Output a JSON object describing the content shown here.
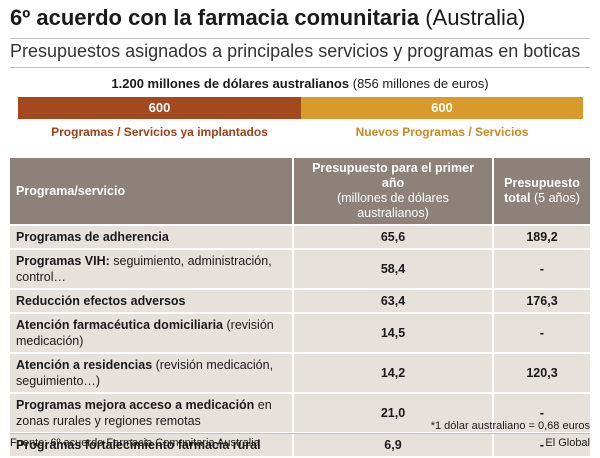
{
  "header": {
    "title_bold": "6º acuerdo con la farmacia comunitaria",
    "title_light": "(Australia)",
    "subtitle": "Presupuestos asignados a principales servicios y programas en boticas"
  },
  "total": {
    "bold": "1.200 millones de dólares australianos",
    "light": "(856 millones de euros)"
  },
  "bars": {
    "left_value": "600",
    "right_value": "600",
    "left_label": "Programas / Servicios ya implantados",
    "right_label": "Nuevos Programas / Servicios",
    "left_color": "#a4481d",
    "right_color": "#d89a2b"
  },
  "table": {
    "headers": {
      "col1": "Programa/servicio",
      "col2_bold": "Presupuesto para el primer año",
      "col2_light": "(millones de dólares australianos)",
      "col3_bold": "Presupuesto total",
      "col3_light": "(5 años)"
    },
    "rows": [
      {
        "name": "Programas de adherencia",
        "detail": "",
        "first_year": "65,6",
        "total": "189,2"
      },
      {
        "name": "Programas VIH:",
        "detail": " seguimiento, administración, control…",
        "first_year": "58,4",
        "total": "-"
      },
      {
        "name": "Reducción efectos adversos",
        "detail": "",
        "first_year": "63,4",
        "total": "176,3"
      },
      {
        "name": "Atención farmacéutica  domiciliaria",
        "detail": " (revisión medicación)",
        "first_year": "14,5",
        "total": "-"
      },
      {
        "name": "Atención a residencias",
        "detail": " (revisión medicación, seguimiento…)",
        "first_year": "14,2",
        "total": "120,3"
      },
      {
        "name": "Programas mejora acceso a medicación",
        "detail": " en zonas rurales y regiones remotas",
        "first_year": "21,0",
        "total": "-"
      },
      {
        "name": "Programas fortalecimiento farmacia rural",
        "detail": "",
        "first_year": "6,9",
        "total": "-"
      }
    ]
  },
  "footnote": "*1 dólar australiano = 0,68 euros",
  "source": "Fuente: 6º acuerdo Farmacia Comunitaria Australia",
  "brand": "El Global"
}
